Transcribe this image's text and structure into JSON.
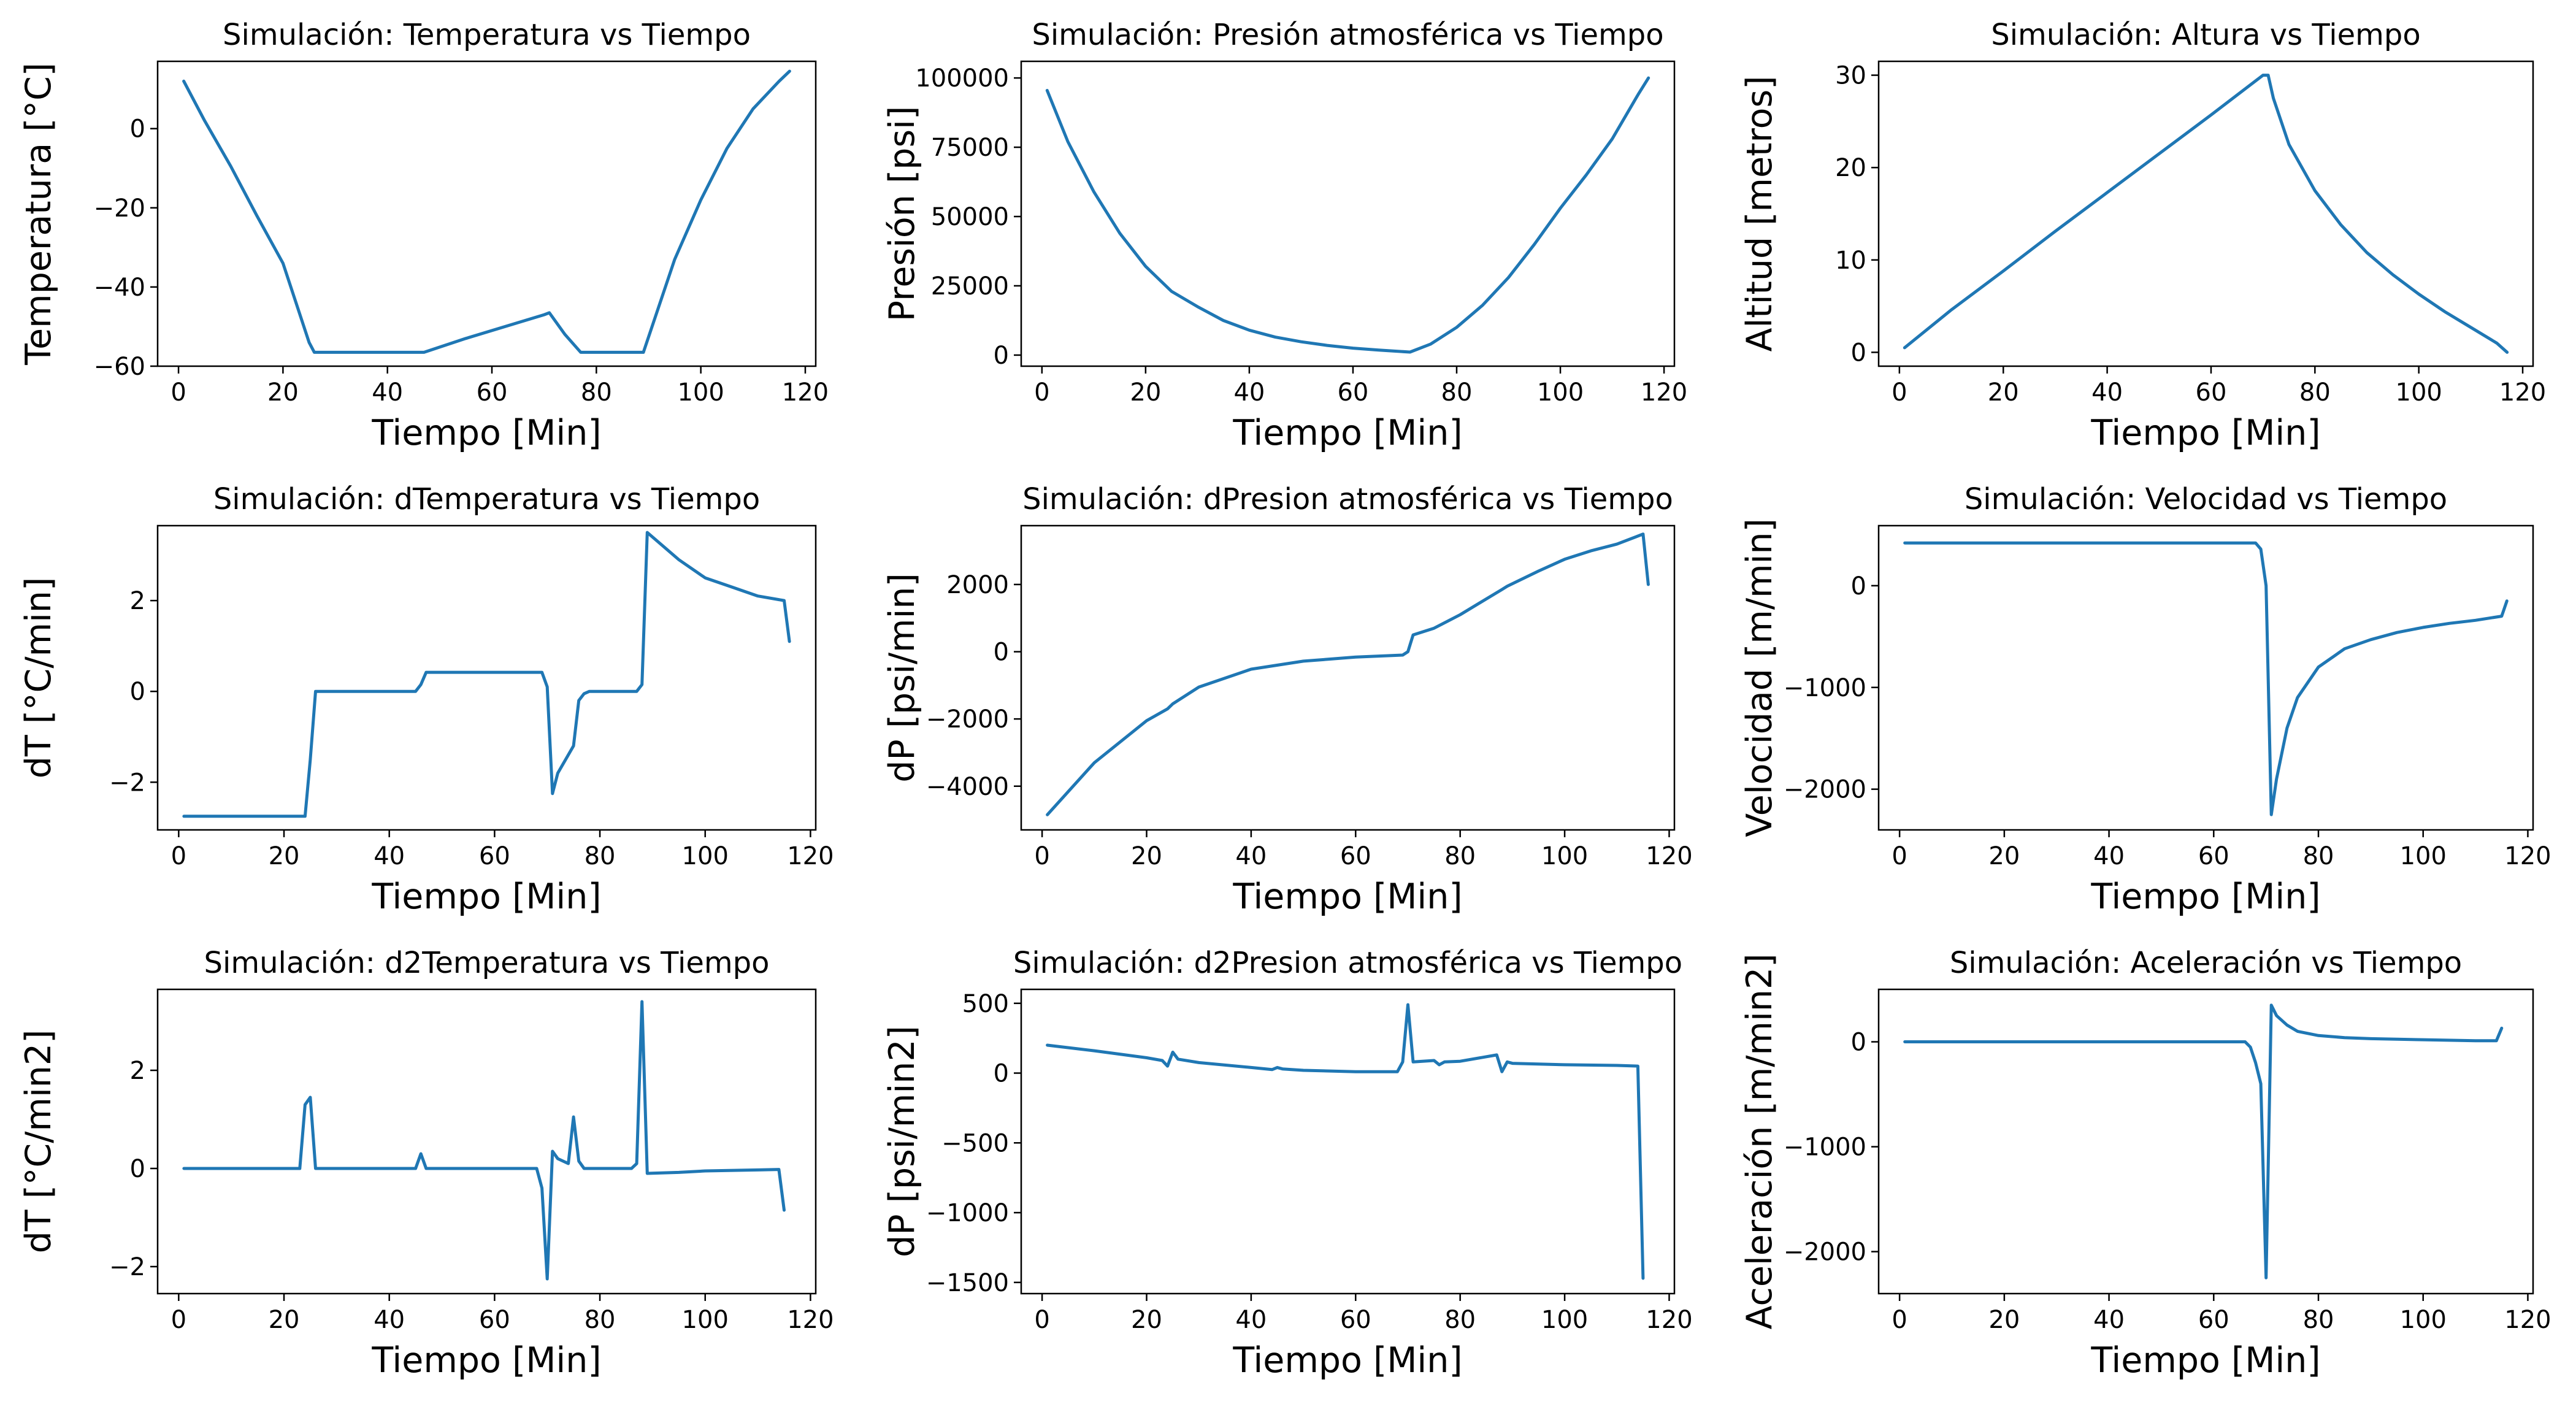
{
  "colors": {
    "series": "#1f77b4",
    "axes": "#000000",
    "background": "#ffffff"
  },
  "chart_data": [
    {
      "type": "line",
      "title": "Simulación: Temperatura vs Tiempo",
      "xlabel": "Tiempo [Min]",
      "ylabel": "Temperatura [°C]",
      "xlim": [
        -4,
        122
      ],
      "ylim": [
        -60,
        17
      ],
      "xticks": [
        0,
        20,
        40,
        60,
        80,
        100,
        120
      ],
      "yticks": [
        -60,
        -40,
        -20,
        0
      ],
      "series": [
        {
          "x": [
            1,
            5,
            10,
            15,
            20,
            25,
            26,
            30,
            40,
            47,
            55,
            65,
            70,
            71,
            74,
            77,
            80,
            89,
            95,
            100,
            105,
            110,
            115,
            117
          ],
          "y": [
            12,
            2,
            -9.5,
            -22,
            -34,
            -54,
            -56.5,
            -56.5,
            -56.5,
            -56.5,
            -53,
            -49,
            -47,
            -46.5,
            -52,
            -56.5,
            -56.5,
            -56.5,
            -33,
            -18,
            -5,
            5,
            12,
            14.5
          ]
        }
      ]
    },
    {
      "type": "line",
      "title": "Simulación: Presión atmosférica vs Tiempo",
      "xlabel": "Tiempo [Min]",
      "ylabel": "Presión [psi]",
      "xlim": [
        -4,
        122
      ],
      "ylim": [
        -4000,
        106000
      ],
      "xticks": [
        0,
        20,
        40,
        60,
        80,
        100,
        120
      ],
      "yticks": [
        0,
        25000,
        50000,
        75000,
        100000
      ],
      "series": [
        {
          "x": [
            1,
            5,
            10,
            15,
            20,
            25,
            30,
            35,
            40,
            45,
            50,
            55,
            60,
            65,
            71,
            75,
            80,
            85,
            90,
            95,
            100,
            105,
            110,
            115,
            117
          ],
          "y": [
            95500,
            77000,
            59000,
            44000,
            32000,
            23000,
            17500,
            12500,
            9000,
            6500,
            4800,
            3500,
            2500,
            1800,
            1100,
            4000,
            10000,
            18000,
            28000,
            40000,
            53000,
            65000,
            78000,
            94000,
            100000
          ]
        }
      ]
    },
    {
      "type": "line",
      "title": "Simulación: Altura vs Tiempo",
      "xlabel": "Tiempo [Min]",
      "ylabel": "Altitud [metros]",
      "xlim": [
        -4,
        122
      ],
      "ylim": [
        -1.5,
        31.5
      ],
      "xticks": [
        0,
        20,
        40,
        60,
        80,
        100,
        120
      ],
      "yticks": [
        0,
        10,
        20,
        30
      ],
      "series": [
        {
          "x": [
            1,
            10,
            20,
            30,
            40,
            50,
            60,
            70,
            71,
            72,
            75,
            80,
            85,
            90,
            95,
            100,
            105,
            110,
            115,
            117
          ],
          "y": [
            0.5,
            4.6,
            8.8,
            13.1,
            17.3,
            21.5,
            25.7,
            30,
            30,
            27.5,
            22.5,
            17.5,
            13.8,
            10.8,
            8.4,
            6.3,
            4.4,
            2.7,
            1,
            0
          ]
        }
      ]
    },
    {
      "type": "line",
      "title": "Simulación: dTemperatura vs Tiempo",
      "xlabel": "Tiempo [Min]",
      "ylabel": "dT [°C/min]",
      "xlim": [
        -4,
        121
      ],
      "ylim": [
        -3.05,
        3.65
      ],
      "xticks": [
        0,
        20,
        40,
        60,
        80,
        100,
        120
      ],
      "yticks": [
        -2,
        0,
        2
      ],
      "series": [
        {
          "x": [
            1,
            24,
            25,
            26,
            45,
            46,
            47,
            69,
            70,
            71,
            72,
            75,
            76,
            77,
            78,
            87,
            88,
            89,
            95,
            100,
            105,
            110,
            115,
            116
          ],
          "y": [
            -2.75,
            -2.75,
            -1.5,
            0,
            0,
            0.15,
            0.42,
            0.42,
            0.1,
            -2.25,
            -1.8,
            -1.2,
            -0.2,
            -0.05,
            0,
            0,
            0.15,
            3.5,
            2.9,
            2.5,
            2.3,
            2.1,
            2,
            1.1
          ]
        }
      ]
    },
    {
      "type": "line",
      "title": "Simulación: dPresion atmosférica vs Tiempo",
      "xlabel": "Tiempo [Min]",
      "ylabel": "dP [psi/min]",
      "xlim": [
        -4,
        121
      ],
      "ylim": [
        -5300,
        3750
      ],
      "xticks": [
        0,
        20,
        40,
        60,
        80,
        100,
        120
      ],
      "yticks": [
        -4000,
        -2000,
        0,
        2000
      ],
      "series": [
        {
          "x": [
            1,
            10,
            20,
            24,
            25,
            30,
            40,
            50,
            60,
            69,
            70,
            71,
            75,
            80,
            88,
            89,
            95,
            100,
            105,
            110,
            115,
            116
          ],
          "y": [
            -4850,
            -3300,
            -2050,
            -1700,
            -1550,
            -1050,
            -520,
            -280,
            -160,
            -100,
            0,
            500,
            700,
            1100,
            1850,
            1950,
            2400,
            2750,
            3000,
            3200,
            3500,
            2000
          ]
        }
      ]
    },
    {
      "type": "line",
      "title": "Simulación: Velocidad vs Tiempo",
      "xlabel": "Tiempo [Min]",
      "ylabel": "Velocidad [m/min]",
      "xlim": [
        -4,
        121
      ],
      "ylim": [
        -2400,
        590
      ],
      "xticks": [
        0,
        20,
        40,
        60,
        80,
        100,
        120
      ],
      "yticks": [
        -2000,
        -1000,
        0
      ],
      "series": [
        {
          "x": [
            1,
            10,
            30,
            50,
            68,
            69,
            70,
            71,
            72,
            74,
            76,
            80,
            85,
            90,
            95,
            100,
            105,
            110,
            115,
            116
          ],
          "y": [
            420,
            420,
            420,
            420,
            420,
            360,
            0,
            -2250,
            -1900,
            -1400,
            -1100,
            -800,
            -620,
            -530,
            -460,
            -410,
            -370,
            -340,
            -300,
            -150
          ]
        }
      ]
    },
    {
      "type": "line",
      "title": "Simulación: d2Temperatura vs Tiempo",
      "xlabel": "Tiempo [Min]",
      "ylabel": "dT [°C/min2]",
      "xlim": [
        -4,
        121
      ],
      "ylim": [
        -2.55,
        3.65
      ],
      "xticks": [
        0,
        20,
        40,
        60,
        80,
        100,
        120
      ],
      "yticks": [
        -2,
        0,
        2
      ],
      "series": [
        {
          "x": [
            1,
            23,
            24,
            25,
            26,
            44,
            45,
            46,
            47,
            68,
            69,
            70,
            71,
            72,
            74,
            75,
            76,
            77,
            78,
            86,
            87,
            88,
            89,
            95,
            100,
            110,
            114,
            115
          ],
          "y": [
            0,
            0,
            1.3,
            1.45,
            0,
            0,
            0,
            0.3,
            0,
            0,
            -0.4,
            -2.25,
            0.35,
            0.2,
            0.1,
            1.05,
            0.15,
            0,
            0,
            0,
            0.1,
            3.4,
            -0.1,
            -0.08,
            -0.05,
            -0.03,
            -0.02,
            -0.85
          ]
        }
      ]
    },
    {
      "type": "line",
      "title": "Simulación: d2Presion atmosférica vs Tiempo",
      "xlabel": "Tiempo [Min]",
      "ylabel": "dP [psi/min2]",
      "xlim": [
        -4,
        121
      ],
      "ylim": [
        -1580,
        600
      ],
      "xticks": [
        0,
        20,
        40,
        60,
        80,
        100,
        120
      ],
      "yticks": [
        -1500,
        -1000,
        -500,
        0,
        500
      ],
      "series": [
        {
          "x": [
            1,
            10,
            20,
            23,
            24,
            25,
            26,
            30,
            40,
            44,
            45,
            46,
            50,
            60,
            68,
            69,
            70,
            71,
            75,
            76,
            77,
            80,
            87,
            88,
            89,
            90,
            100,
            110,
            114,
            115
          ],
          "y": [
            200,
            160,
            110,
            90,
            50,
            150,
            100,
            75,
            40,
            25,
            40,
            30,
            20,
            10,
            10,
            80,
            490,
            80,
            90,
            60,
            80,
            85,
            130,
            10,
            80,
            70,
            60,
            55,
            50,
            -1470
          ]
        }
      ]
    },
    {
      "type": "line",
      "title": "Simulación: Aceleración vs Tiempo",
      "xlabel": "Tiempo [Min]",
      "ylabel": "Aceleración [m/min2]",
      "xlim": [
        -4,
        121
      ],
      "ylim": [
        -2400,
        500
      ],
      "xticks": [
        0,
        20,
        40,
        60,
        80,
        100,
        120
      ],
      "yticks": [
        -2000,
        -1000,
        0
      ],
      "series": [
        {
          "x": [
            1,
            30,
            60,
            66,
            67,
            68,
            69,
            70,
            71,
            72,
            74,
            76,
            80,
            85,
            90,
            100,
            110,
            114,
            115
          ],
          "y": [
            0,
            0,
            0,
            0,
            -50,
            -200,
            -400,
            -2250,
            350,
            250,
            160,
            100,
            60,
            40,
            30,
            20,
            10,
            10,
            130
          ]
        }
      ]
    }
  ]
}
